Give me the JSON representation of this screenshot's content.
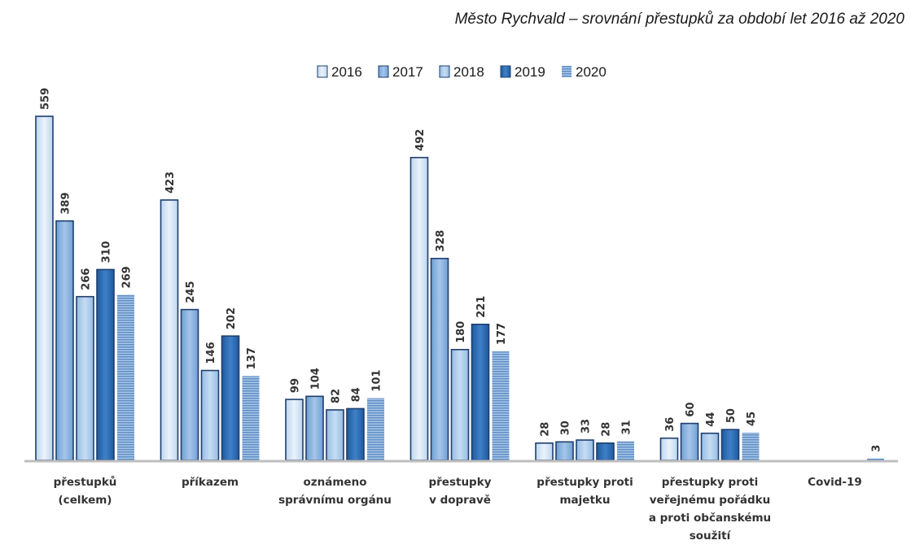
{
  "chart_data": {
    "type": "bar",
    "title": "Město Rychvald – srovnání přestupků za období let 2016 až 2020",
    "categories": [
      [
        "přestupků",
        "(celkem)"
      ],
      [
        "příkazem"
      ],
      [
        "oznámeno",
        "správnímu orgánu"
      ],
      [
        "přestupky",
        "v dopravě"
      ],
      [
        "přestupky proti",
        "majetku"
      ],
      [
        "přestupky proti",
        "veřejnému pořádku",
        "a proti občanskému",
        "soužití"
      ],
      [
        "Covid-19"
      ]
    ],
    "series": [
      {
        "name": "2016",
        "values": [
          559,
          423,
          99,
          492,
          28,
          36,
          null
        ]
      },
      {
        "name": "2017",
        "values": [
          389,
          245,
          104,
          328,
          30,
          60,
          null
        ]
      },
      {
        "name": "2018",
        "values": [
          266,
          146,
          82,
          180,
          33,
          44,
          null
        ]
      },
      {
        "name": "2019",
        "values": [
          310,
          202,
          84,
          221,
          28,
          50,
          null
        ]
      },
      {
        "name": "2020",
        "values": [
          269,
          137,
          101,
          177,
          31,
          45,
          3
        ]
      }
    ],
    "ylim": [
      0,
      580
    ],
    "grid": false,
    "legend_position": "top-center",
    "colors": {
      "2016": "#d9e8f6",
      "2017": "#8fb8e2",
      "2018": "#b3d0ee",
      "2019": "#2e6fb8",
      "2020": "#7fa6d1",
      "outline": "#1f3f6e",
      "axis": "#bfbfbf"
    }
  }
}
